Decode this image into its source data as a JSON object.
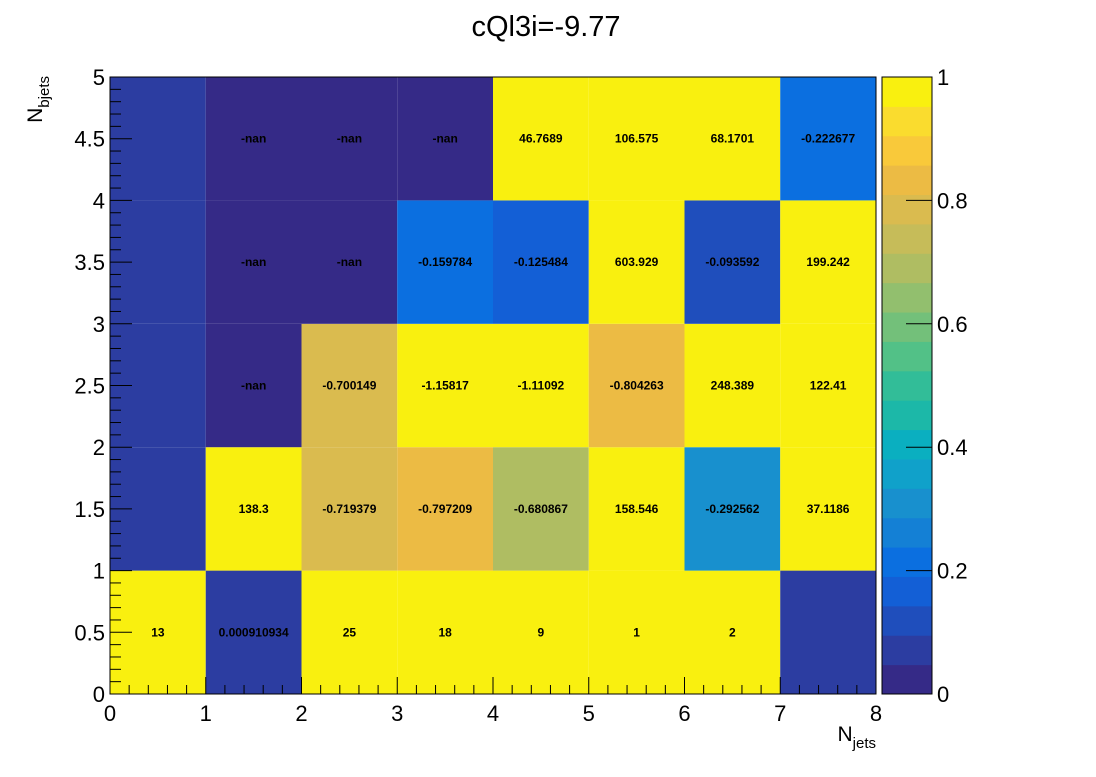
{
  "chart_data": {
    "type": "heatmap",
    "title": "cQl3i=-9.77",
    "xlabel": {
      "main": "N",
      "sub": "jets"
    },
    "ylabel": {
      "main": "N",
      "sub": "bjets"
    },
    "xlim": [
      0,
      8
    ],
    "ylim": [
      0,
      5
    ],
    "zlim": [
      0,
      1
    ],
    "x_ticks": [
      "0",
      "1",
      "2",
      "3",
      "4",
      "5",
      "6",
      "7",
      "8"
    ],
    "y_ticks": [
      "0",
      "0.5",
      "1",
      "1.5",
      "2",
      "2.5",
      "3",
      "3.5",
      "4",
      "4.5",
      "5"
    ],
    "z_ticks": [
      "0",
      "0.2",
      "0.4",
      "0.6",
      "0.8",
      "1"
    ],
    "palette": [
      "#352a87",
      "#2c3da1",
      "#1f4ebc",
      "#135fd6",
      "#0b6fe0",
      "#1480d5",
      "#1890ce",
      "#10a1ca",
      "#0aafc0",
      "#1cb8a8",
      "#32bd98",
      "#52c187",
      "#73c07a",
      "#92bf6e",
      "#afbd62",
      "#c6bc59",
      "#dabb4f",
      "#ecbb44",
      "#f9c93a",
      "#fadc2e",
      "#f9f00f"
    ],
    "cells": [
      {
        "x": 0,
        "y": 0,
        "value": 1,
        "label": "13"
      },
      {
        "x": 1,
        "y": 0,
        "value": 0.03,
        "label": "0.000910934"
      },
      {
        "x": 2,
        "y": 0,
        "value": 1,
        "label": "25"
      },
      {
        "x": 3,
        "y": 0,
        "value": 1,
        "label": "18"
      },
      {
        "x": 4,
        "y": 0,
        "value": 1,
        "label": "9"
      },
      {
        "x": 5,
        "y": 0,
        "value": 1,
        "label": "1"
      },
      {
        "x": 6,
        "y": 0,
        "value": 1,
        "label": "2"
      },
      {
        "x": 7,
        "y": 0,
        "value": 0.03,
        "label": ""
      },
      {
        "x": 0,
        "y": 1,
        "value": 0.03,
        "label": ""
      },
      {
        "x": 1,
        "y": 1,
        "value": 1,
        "label": "138.3"
      },
      {
        "x": 2,
        "y": 1,
        "value": 0.8,
        "label": "-0.719379"
      },
      {
        "x": 3,
        "y": 1,
        "value": 0.83,
        "label": "-0.797209"
      },
      {
        "x": 4,
        "y": 1,
        "value": 0.7,
        "label": "-0.680867"
      },
      {
        "x": 5,
        "y": 1,
        "value": 1,
        "label": "158.546"
      },
      {
        "x": 6,
        "y": 1,
        "value": 0.3,
        "label": "-0.292562"
      },
      {
        "x": 7,
        "y": 1,
        "value": 1,
        "label": "37.1186"
      },
      {
        "x": 0,
        "y": 2,
        "value": 0.03,
        "label": ""
      },
      {
        "x": 1,
        "y": 2,
        "value": 0,
        "label": "-nan"
      },
      {
        "x": 2,
        "y": 2,
        "value": 0.78,
        "label": "-0.700149"
      },
      {
        "x": 3,
        "y": 2,
        "value": 1,
        "label": "-1.15817"
      },
      {
        "x": 4,
        "y": 2,
        "value": 1,
        "label": "-1.11092"
      },
      {
        "x": 5,
        "y": 2,
        "value": 0.86,
        "label": "-0.804263"
      },
      {
        "x": 6,
        "y": 2,
        "value": 1,
        "label": "248.389"
      },
      {
        "x": 7,
        "y": 2,
        "value": 1,
        "label": "122.41"
      },
      {
        "x": 0,
        "y": 3,
        "value": 0.03,
        "label": ""
      },
      {
        "x": 1,
        "y": 3,
        "value": 0,
        "label": "-nan"
      },
      {
        "x": 2,
        "y": 3,
        "value": 0,
        "label": "-nan"
      },
      {
        "x": 3,
        "y": 3,
        "value": 0.2,
        "label": "-0.159784"
      },
      {
        "x": 4,
        "y": 3,
        "value": 0.15,
        "label": "-0.125484"
      },
      {
        "x": 5,
        "y": 3,
        "value": 1,
        "label": "603.929"
      },
      {
        "x": 6,
        "y": 3,
        "value": 0.12,
        "label": "-0.093592"
      },
      {
        "x": 7,
        "y": 3,
        "value": 1,
        "label": "199.242"
      },
      {
        "x": 0,
        "y": 4,
        "value": 0.03,
        "label": ""
      },
      {
        "x": 1,
        "y": 4,
        "value": 0,
        "label": "-nan"
      },
      {
        "x": 2,
        "y": 4,
        "value": 0,
        "label": "-nan"
      },
      {
        "x": 3,
        "y": 4,
        "value": 0,
        "label": "-nan"
      },
      {
        "x": 4,
        "y": 4,
        "value": 1,
        "label": "46.7689"
      },
      {
        "x": 5,
        "y": 4,
        "value": 1,
        "label": "106.575"
      },
      {
        "x": 6,
        "y": 4,
        "value": 1,
        "label": "68.1701"
      },
      {
        "x": 7,
        "y": 4,
        "value": 0.22,
        "label": "-0.222677"
      }
    ]
  }
}
